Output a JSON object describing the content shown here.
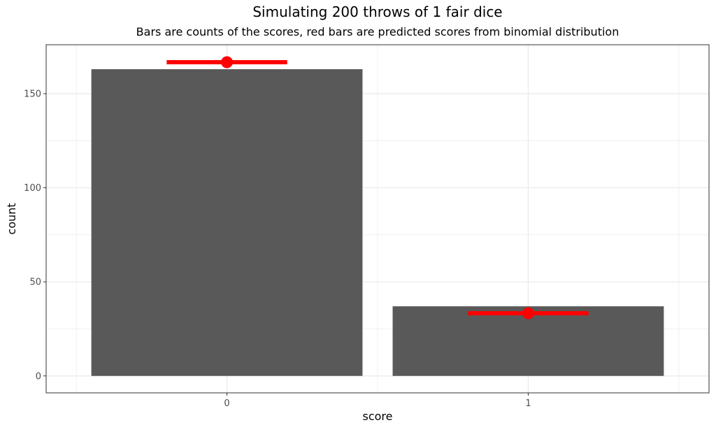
{
  "chart_data": {
    "type": "bar",
    "title": "Simulating 200 throws of 1 fair dice",
    "subtitle": "Bars are counts of the scores, red bars are predicted scores from binomial distribution",
    "xlabel": "score",
    "ylabel": "count",
    "categories": [
      "0",
      "1"
    ],
    "values": [
      163,
      37
    ],
    "predicted": [
      166.7,
      33.3
    ],
    "ylim": [
      -9,
      176
    ],
    "y_ticks": [
      0,
      50,
      100,
      150
    ],
    "grid": true,
    "colors": {
      "bars": "#595959",
      "predicted": "#ff0000",
      "grid": "#ebebeb",
      "panel_border": "#333333"
    }
  }
}
